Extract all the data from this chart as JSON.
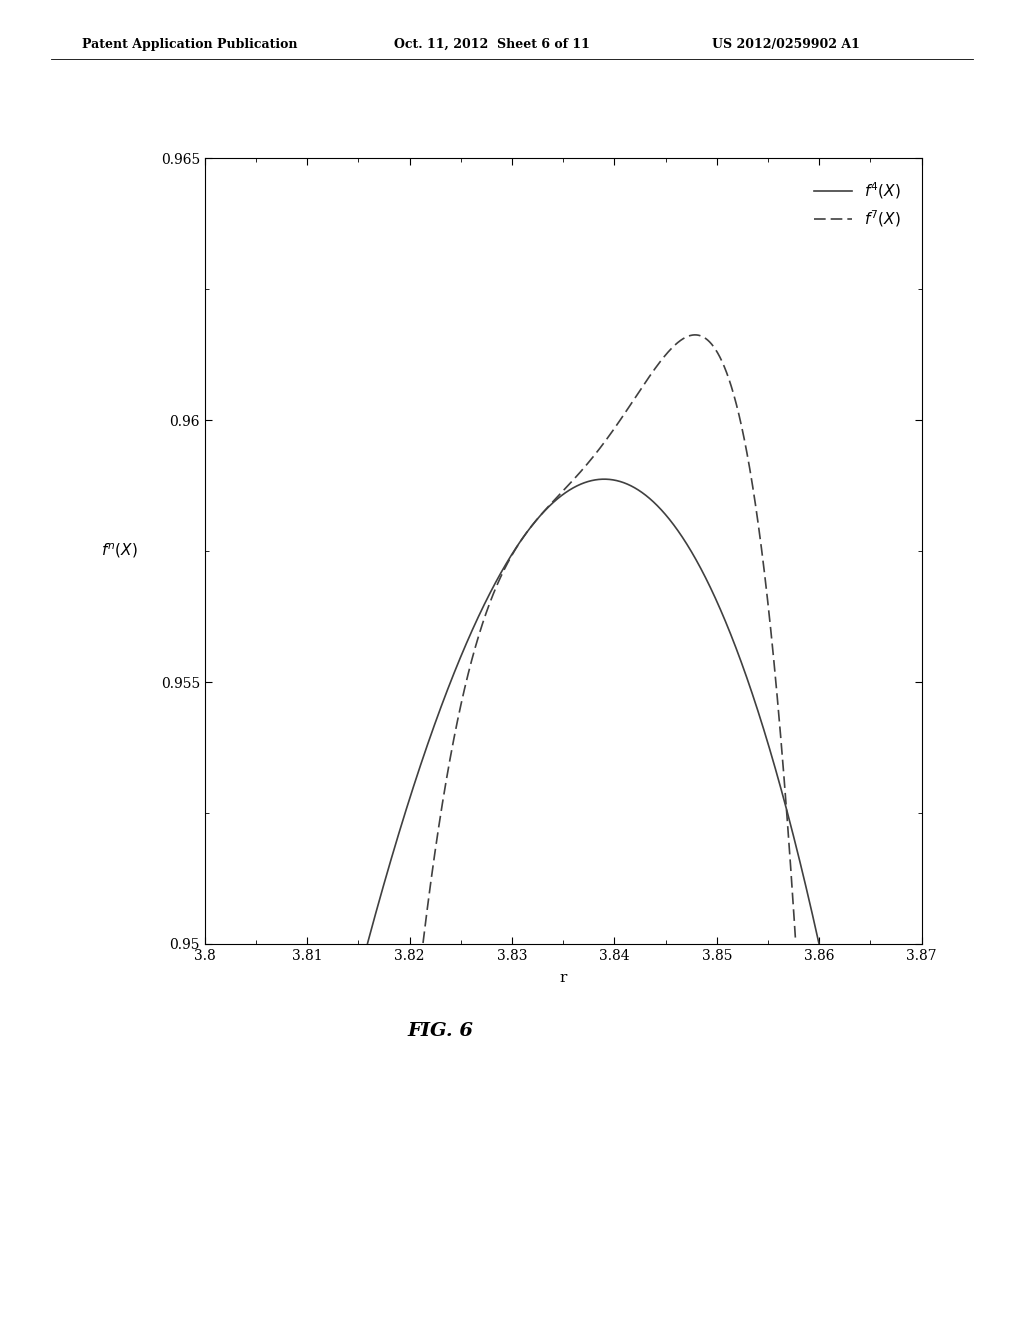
{
  "header_left": "Patent Application Publication",
  "header_mid": "Oct. 11, 2012  Sheet 6 of 11",
  "header_right": "US 2012/0259902 A1",
  "fig_label": "FIG. 6",
  "xlabel": "r",
  "xlim": [
    3.8,
    3.87
  ],
  "ylim": [
    0.95,
    0.965
  ],
  "xticks": [
    3.8,
    3.81,
    3.82,
    3.83,
    3.84,
    3.85,
    3.86,
    3.87
  ],
  "yticks": [
    0.95,
    0.955,
    0.96,
    0.965
  ],
  "background_color": "#ffffff",
  "line_color": "#404040",
  "r_min": 3.8,
  "r_max": 3.87,
  "n_points": 3000,
  "header_font_size": 9,
  "tick_font_size": 10,
  "label_font_size": 11,
  "legend_font_size": 11,
  "fig_label_font_size": 14
}
